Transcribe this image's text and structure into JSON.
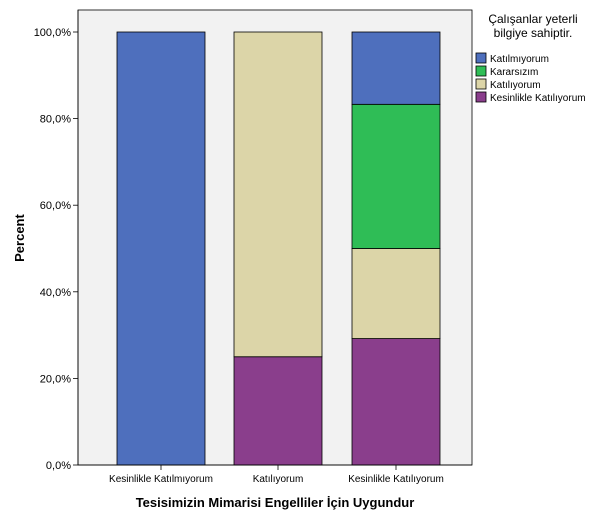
{
  "colors": {
    "plot_background": "#f2f2f2",
    "Katılmıyorum": "#4e6fbd",
    "Kararsızım": "#2fbd56",
    "Katılıyorum": "#dcd5a8",
    "Kesinlikle Katılıyorum": "#8a3e8c"
  },
  "chart_data": {
    "type": "bar",
    "stacked": true,
    "title": "",
    "xlabel": "Tesisimizin Mimarisi Engelliler İçin Uygundur",
    "ylabel": "Percent",
    "ylim": [
      0,
      100
    ],
    "y_ticks": [
      "0,0%",
      "20,0%",
      "40,0%",
      "60,0%",
      "80,0%",
      "100,0%"
    ],
    "y_tick_values": [
      0,
      20,
      40,
      60,
      80,
      100
    ],
    "grid": false,
    "categories": [
      "Kesinlikle Katılmıyorum",
      "Katılıyorum",
      "Kesinlikle Katılıyorum"
    ],
    "legend": {
      "title_lines": [
        "Çalışanlar yeterli",
        "bilgiye sahiptir."
      ],
      "position": "right"
    },
    "series": [
      {
        "name": "Kesinlikle Katılıyorum",
        "values": [
          0,
          25,
          29.2
        ]
      },
      {
        "name": "Katılıyorum",
        "values": [
          0,
          75,
          20.8
        ]
      },
      {
        "name": "Kararsızım",
        "values": [
          0,
          0,
          33.3
        ]
      },
      {
        "name": "Katılmıyorum",
        "values": [
          100,
          0,
          16.7
        ]
      }
    ],
    "legend_order": [
      "Katılmıyorum",
      "Kararsızım",
      "Katılıyorum",
      "Kesinlikle Katılıyorum"
    ]
  }
}
